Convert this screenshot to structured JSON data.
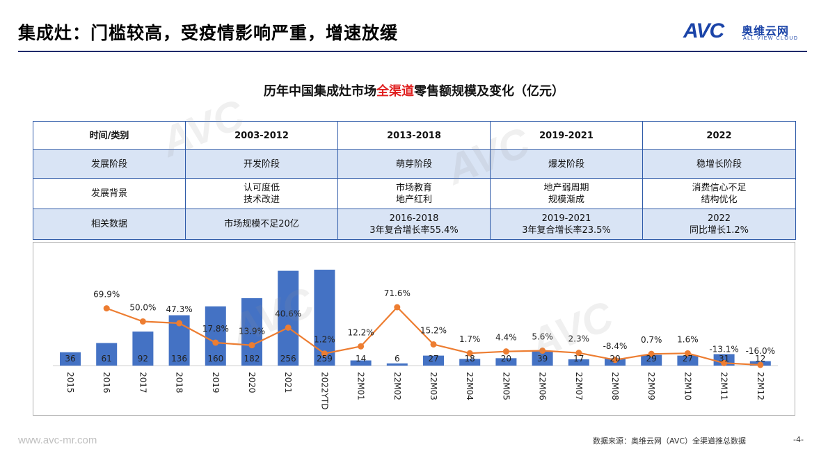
{
  "header": {
    "title": "集成灶：门槛较高，受疫情影响严重，增速放缓",
    "logo_avc": "AVC",
    "logo_cn": "奥维云网",
    "logo_en": "ALL VIEW CLOUD"
  },
  "chart_title": {
    "part1": "历年中国集成灶市场",
    "highlight": "全渠道",
    "part2": "零售额规模及变化（亿元）"
  },
  "table": {
    "header": [
      "时间/类别",
      "2003-2012",
      "2013-2018",
      "2019-2021",
      "2022"
    ],
    "rows": [
      [
        "发展阶段",
        "开发阶段",
        "萌芽阶段",
        "爆发阶段",
        "稳增长阶段"
      ],
      [
        "发展背景",
        "认可度低\n技术改进",
        "市场教育\n地产红利",
        "地产弱周期\n规模渐成",
        "消费信心不足\n结构优化"
      ],
      [
        "相关数据",
        "市场规模不足20亿",
        "2016-2018\n3年复合增长率55.4%",
        "2019-2021\n3年复合增长率23.5%",
        "2022\n同比增长1.2%"
      ]
    ]
  },
  "colors": {
    "bar": "#4472c4",
    "line": "#ed7d31",
    "border": "#2e5aa8",
    "row_fill": "#d9e4f5"
  },
  "chart_data": {
    "type": "bar",
    "categories": [
      "2015",
      "2016",
      "2017",
      "2018",
      "2019",
      "2020",
      "2021",
      "2022YTD",
      "22M01",
      "22M02",
      "22M03",
      "22M04",
      "22M05",
      "22M06",
      "22M07",
      "22M08",
      "22M09",
      "22M10",
      "22M11",
      "22M12"
    ],
    "series": [
      {
        "values": [
          36,
          61,
          92,
          136,
          160,
          182,
          256,
          259,
          14,
          6,
          27,
          18,
          20,
          39,
          17,
          20,
          29,
          27,
          31,
          12
        ]
      },
      {
        "type": "line",
        "values": [
          null,
          69.9,
          50.0,
          47.3,
          17.8,
          13.9,
          40.6,
          1.2,
          12.2,
          71.6,
          15.2,
          1.7,
          4.4,
          5.6,
          2.3,
          -8.4,
          0.7,
          1.6,
          -13.1,
          -16.0
        ]
      }
    ],
    "bar_labels": [
      "36",
      "61",
      "92",
      "136",
      "160",
      "182",
      "256",
      "259",
      "14",
      "6",
      "27",
      "18",
      "20",
      "39",
      "17",
      "20",
      "29",
      "27",
      "31",
      "12"
    ],
    "line_labels": [
      "",
      "69.9%",
      "50.0%",
      "47.3%",
      "17.8%",
      "13.9%",
      "40.6%",
      "1.2%",
      "12.2%",
      "71.6%",
      "15.2%",
      "1.7%",
      "4.4%",
      "5.6%",
      "2.3%",
      "-8.4%",
      "0.7%",
      "1.6%",
      "-13.1%",
      "-16.0%"
    ]
  },
  "footer": {
    "url": "www.avc-mr.com",
    "source": "数据来源：奥维云网（AVC）全渠道推总数据",
    "page": "-4-"
  }
}
